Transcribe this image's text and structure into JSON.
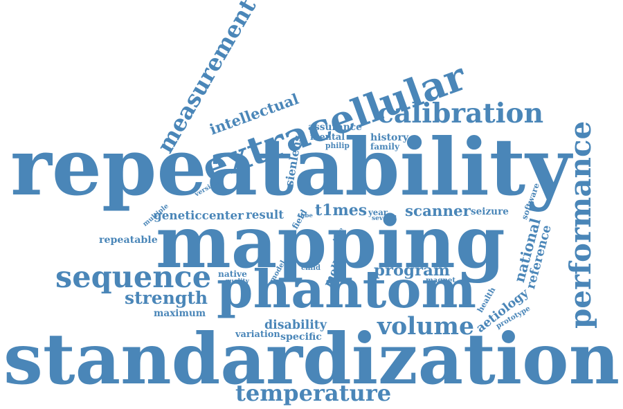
{
  "word_color": "#4a86b8",
  "background_color": "#ffffff",
  "words": [
    {
      "text": "standardization",
      "orientation": "horizontal"
    },
    {
      "text": "repeatability",
      "orientation": "horizontal"
    },
    {
      "text": "mapping",
      "orientation": "horizontal"
    },
    {
      "text": "phantom",
      "orientation": "horizontal"
    },
    {
      "text": "extracellular",
      "orientation": "angled"
    },
    {
      "text": "calibration",
      "orientation": "horizontal"
    },
    {
      "text": "sequence",
      "orientation": "horizontal"
    },
    {
      "text": "performance",
      "orientation": "vertical"
    },
    {
      "text": "measurement",
      "orientation": "angled"
    },
    {
      "text": "temperature",
      "orientation": "horizontal"
    },
    {
      "text": "volume",
      "orientation": "horizontal"
    },
    {
      "text": "strength",
      "orientation": "horizontal"
    },
    {
      "text": "program",
      "orientation": "horizontal"
    },
    {
      "text": "intellectual",
      "orientation": "angled"
    },
    {
      "text": "scanner",
      "orientation": "horizontal"
    },
    {
      "text": "t1mes",
      "orientation": "horizontal"
    },
    {
      "text": "disability",
      "orientation": "horizontal"
    },
    {
      "text": "aetiology",
      "orientation": "angled"
    },
    {
      "text": "national",
      "orientation": "vertical"
    },
    {
      "text": "reference",
      "orientation": "vertical"
    },
    {
      "text": "repeatable",
      "orientation": "horizontal"
    },
    {
      "text": "geneticcenter",
      "orientation": "horizontal"
    },
    {
      "text": "result",
      "orientation": "horizontal"
    },
    {
      "text": "sienlens",
      "orientation": "vertical"
    },
    {
      "text": "assurance",
      "orientation": "horizontal"
    },
    {
      "text": "history",
      "orientation": "horizontal"
    },
    {
      "text": "mental",
      "orientation": "horizontal"
    },
    {
      "text": "family",
      "orientation": "horizontal"
    },
    {
      "text": "philip",
      "orientation": "horizontal"
    },
    {
      "text": "seizure",
      "orientation": "horizontal"
    },
    {
      "text": "molli",
      "orientation": "angled"
    },
    {
      "text": "maximum",
      "orientation": "horizontal"
    },
    {
      "text": "variation",
      "orientation": "horizontal"
    },
    {
      "text": "specific",
      "orientation": "horizontal"
    },
    {
      "text": "native",
      "orientation": "horizontal"
    },
    {
      "text": "quality",
      "orientation": "horizontal"
    },
    {
      "text": "model",
      "orientation": "angled"
    },
    {
      "text": "child",
      "orientation": "horizontal"
    },
    {
      "text": "magnet",
      "orientation": "horizontal"
    },
    {
      "text": "field",
      "orientation": "angled"
    },
    {
      "text": "tube",
      "orientation": "horizontal"
    },
    {
      "text": "year",
      "orientation": "horizontal"
    },
    {
      "text": "several",
      "orientation": "horizontal"
    },
    {
      "text": "time",
      "orientation": "angled"
    },
    {
      "text": "multiple",
      "orientation": "angled"
    },
    {
      "text": "version",
      "orientation": "angled"
    },
    {
      "text": "software",
      "orientation": "angled"
    },
    {
      "text": "health",
      "orientation": "angled"
    },
    {
      "text": "prototype",
      "orientation": "angled"
    }
  ]
}
